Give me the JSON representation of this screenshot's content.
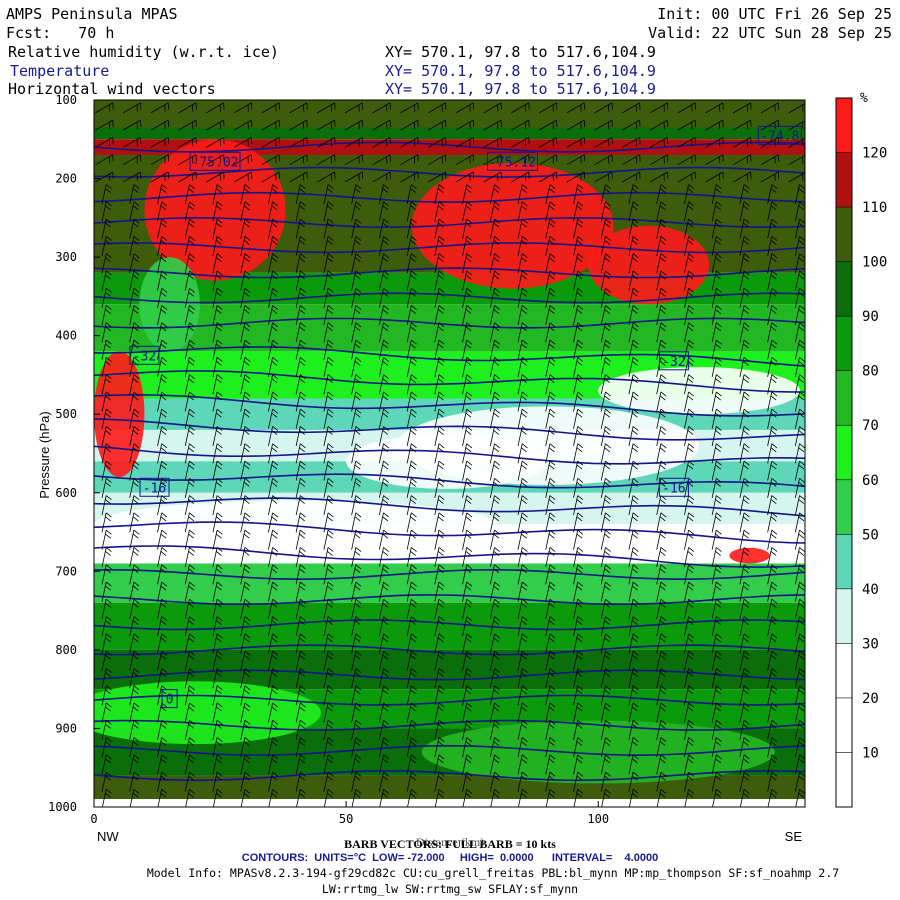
{
  "header": {
    "title": "AMPS Peninsula MPAS",
    "init": "Init: 00 UTC Fri 26 Sep 25",
    "fcst": "Fcst:   70 h",
    "valid": "Valid: 22 UTC Sun 28 Sep 25",
    "fields": [
      {
        "name": "Relative humidity (w.r.t. ice)",
        "xy": "XY= 570.1, 97.8 to 517.6,104.9"
      },
      {
        "name": "Temperature",
        "xy": "XY= 570.1, 97.8 to 517.6,104.9"
      },
      {
        "name": "Horizontal wind vectors",
        "xy": "XY= 570.1, 97.8 to 517.6,104.9"
      }
    ]
  },
  "chart_data": {
    "type": "heatmap",
    "ylabel": "Pressure (hPa)",
    "xlabel": "Distance (km)",
    "x_ticks": [
      "0",
      "50",
      "100"
    ],
    "y_ticks": [
      "100",
      "200",
      "300",
      "400",
      "500",
      "600",
      "700",
      "800",
      "900",
      "1000"
    ],
    "xlim": [
      0,
      141
    ],
    "ylim": [
      1000,
      100
    ],
    "x_end_labels": {
      "left": "NW",
      "right": "SE"
    },
    "colorbar": {
      "unit": "%",
      "ticks": [
        "10",
        "20",
        "30",
        "40",
        "50",
        "60",
        "70",
        "80",
        "90",
        "100",
        "110",
        "120"
      ],
      "colors": [
        "#ffffff",
        "#ffffff",
        "#ffffff",
        "#d6f5ee",
        "#5ed6b8",
        "#32cd4b",
        "#1ef01e",
        "#23b823",
        "#0b9a0b",
        "#0a6e0a",
        "#3d5c0c",
        "#b01010",
        "#ff1a1a"
      ]
    },
    "temperature_contours": {
      "units": "°C",
      "low": "-72.000",
      "high": "0.0000",
      "interval": "4.0000",
      "labels": [
        {
          "text": "-75.02",
          "x": 24,
          "p": 178
        },
        {
          "text": "-75.12",
          "x": 83,
          "p": 178
        },
        {
          "text": "-74.8",
          "x": 136,
          "p": 145
        },
        {
          "text": "-32",
          "x": 10,
          "p": 425
        },
        {
          "text": "-32",
          "x": 115,
          "p": 432
        },
        {
          "text": "-16",
          "x": 12,
          "p": 593
        },
        {
          "text": "-16",
          "x": 115,
          "p": 593
        },
        {
          "text": "0",
          "x": 15,
          "p": 862
        }
      ]
    },
    "barb_note": "BARB VECTORS: FULL BARB = 10 kts",
    "contour_line": "CONTOURS:  UNITS=°C  LOW= -72.000     HIGH=  0.0000      INTERVAL=    4.0000",
    "model_info_1": "Model Info: MPASv8.2.3-194-gf29cd82c CU:cu_grell_freitas PBL:bl_mynn MP:mp_thompson SF:sf_noahmp 2.7",
    "model_info_2": "LW:rrtmg_lw SW:rrtmg_sw SFLAY:sf_mynn"
  }
}
